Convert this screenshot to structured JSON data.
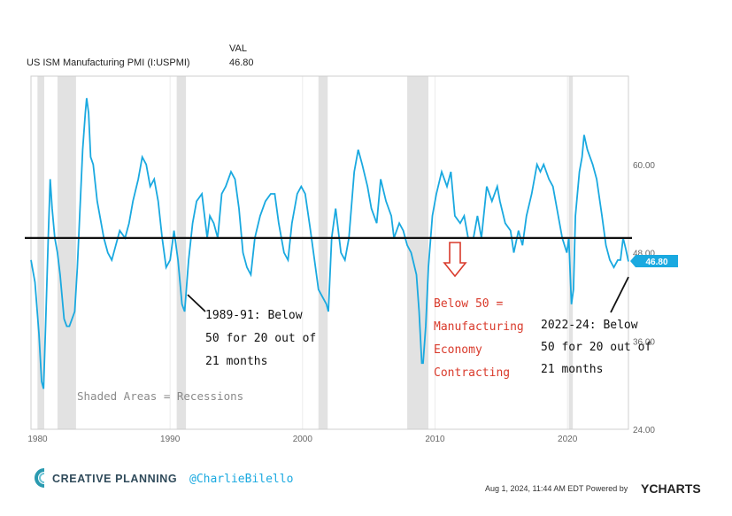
{
  "header": {
    "series_name": "US ISM Manufacturing PMI (I:USPMI)",
    "val_label": "VAL",
    "val_value": "46.80"
  },
  "chart_data": {
    "type": "line",
    "title": "US ISM Manufacturing PMI (I:USPMI)",
    "xlabel": "",
    "ylabel": "",
    "xlim": [
      1979.5,
      2024.6
    ],
    "ylim": [
      24,
      72
    ],
    "x_ticks": [
      "1980",
      "1990",
      "2000",
      "2010",
      "2020"
    ],
    "y_ticks": [
      "24.00",
      "36.00",
      "48.00",
      "60.00"
    ],
    "reference_line": 50,
    "last_value_label": "46.80",
    "recessions": [
      [
        1980.0,
        1980.5
      ],
      [
        1981.5,
        1982.9
      ],
      [
        1990.5,
        1991.2
      ],
      [
        2001.2,
        2001.9
      ],
      [
        2007.9,
        2009.5
      ],
      [
        2020.1,
        2020.4
      ]
    ],
    "series": [
      {
        "color": "#1aa9e0",
        "points": [
          [
            1979.5,
            47
          ],
          [
            1979.8,
            44
          ],
          [
            1980.1,
            37
          ],
          [
            1980.3,
            30.5
          ],
          [
            1980.45,
            29.5
          ],
          [
            1980.6,
            38
          ],
          [
            1980.8,
            50
          ],
          [
            1980.95,
            58
          ],
          [
            1981.1,
            54
          ],
          [
            1981.3,
            50
          ],
          [
            1981.5,
            48
          ],
          [
            1981.7,
            45
          ],
          [
            1981.9,
            41
          ],
          [
            1982.0,
            39
          ],
          [
            1982.2,
            38
          ],
          [
            1982.4,
            38
          ],
          [
            1982.6,
            39
          ],
          [
            1982.8,
            40
          ],
          [
            1983.0,
            46
          ],
          [
            1983.2,
            54
          ],
          [
            1983.4,
            62
          ],
          [
            1983.6,
            67
          ],
          [
            1983.7,
            69
          ],
          [
            1983.85,
            67
          ],
          [
            1984.0,
            61
          ],
          [
            1984.2,
            60
          ],
          [
            1984.5,
            55
          ],
          [
            1984.8,
            52
          ],
          [
            1985.0,
            50
          ],
          [
            1985.3,
            48
          ],
          [
            1985.6,
            47
          ],
          [
            1985.9,
            49
          ],
          [
            1986.2,
            51
          ],
          [
            1986.6,
            50
          ],
          [
            1986.9,
            52
          ],
          [
            1987.2,
            55
          ],
          [
            1987.6,
            58
          ],
          [
            1987.9,
            61
          ],
          [
            1988.2,
            60
          ],
          [
            1988.5,
            57
          ],
          [
            1988.8,
            58
          ],
          [
            1989.1,
            55
          ],
          [
            1989.4,
            50
          ],
          [
            1989.7,
            46
          ],
          [
            1990.0,
            47
          ],
          [
            1990.3,
            51
          ],
          [
            1990.6,
            47
          ],
          [
            1990.9,
            41
          ],
          [
            1991.1,
            40
          ],
          [
            1991.4,
            47
          ],
          [
            1991.7,
            52
          ],
          [
            1992.0,
            55
          ],
          [
            1992.4,
            56
          ],
          [
            1992.8,
            50
          ],
          [
            1993.0,
            53
          ],
          [
            1993.3,
            52
          ],
          [
            1993.6,
            50
          ],
          [
            1993.9,
            56
          ],
          [
            1994.2,
            57
          ],
          [
            1994.6,
            59
          ],
          [
            1994.9,
            58
          ],
          [
            1995.2,
            54
          ],
          [
            1995.5,
            48
          ],
          [
            1995.8,
            46
          ],
          [
            1996.1,
            45
          ],
          [
            1996.4,
            50
          ],
          [
            1996.8,
            53
          ],
          [
            1997.2,
            55
          ],
          [
            1997.6,
            56
          ],
          [
            1997.9,
            56
          ],
          [
            1998.2,
            52
          ],
          [
            1998.6,
            48
          ],
          [
            1998.9,
            47
          ],
          [
            1999.2,
            52
          ],
          [
            1999.6,
            56
          ],
          [
            1999.9,
            57
          ],
          [
            2000.2,
            56
          ],
          [
            2000.6,
            51
          ],
          [
            2000.9,
            47
          ],
          [
            2001.2,
            43
          ],
          [
            2001.5,
            42
          ],
          [
            2001.8,
            41
          ],
          [
            2001.95,
            40
          ],
          [
            2002.2,
            50
          ],
          [
            2002.5,
            54
          ],
          [
            2002.9,
            48
          ],
          [
            2003.2,
            47
          ],
          [
            2003.5,
            50
          ],
          [
            2003.9,
            59
          ],
          [
            2004.2,
            62
          ],
          [
            2004.5,
            60
          ],
          [
            2004.9,
            57
          ],
          [
            2005.2,
            54
          ],
          [
            2005.6,
            52
          ],
          [
            2005.9,
            58
          ],
          [
            2006.3,
            55
          ],
          [
            2006.7,
            53
          ],
          [
            2006.9,
            50
          ],
          [
            2007.3,
            52
          ],
          [
            2007.6,
            51
          ],
          [
            2007.9,
            49
          ],
          [
            2008.2,
            48
          ],
          [
            2008.6,
            45
          ],
          [
            2008.8,
            40
          ],
          [
            2009.0,
            33
          ],
          [
            2009.1,
            33
          ],
          [
            2009.3,
            38
          ],
          [
            2009.5,
            46
          ],
          [
            2009.8,
            53
          ],
          [
            2010.1,
            56
          ],
          [
            2010.5,
            59
          ],
          [
            2010.9,
            57
          ],
          [
            2011.2,
            59
          ],
          [
            2011.5,
            53
          ],
          [
            2011.9,
            52
          ],
          [
            2012.2,
            53
          ],
          [
            2012.5,
            50
          ],
          [
            2012.9,
            50
          ],
          [
            2013.2,
            53
          ],
          [
            2013.5,
            50
          ],
          [
            2013.9,
            57
          ],
          [
            2014.3,
            55
          ],
          [
            2014.7,
            57
          ],
          [
            2014.9,
            55
          ],
          [
            2015.3,
            52
          ],
          [
            2015.7,
            51
          ],
          [
            2015.95,
            48
          ],
          [
            2016.3,
            51
          ],
          [
            2016.6,
            49
          ],
          [
            2016.9,
            53
          ],
          [
            2017.3,
            56
          ],
          [
            2017.7,
            60
          ],
          [
            2017.95,
            59
          ],
          [
            2018.2,
            60
          ],
          [
            2018.6,
            58
          ],
          [
            2018.9,
            57
          ],
          [
            2019.2,
            54
          ],
          [
            2019.6,
            50
          ],
          [
            2019.95,
            48
          ],
          [
            2020.1,
            50
          ],
          [
            2020.3,
            41
          ],
          [
            2020.45,
            43
          ],
          [
            2020.6,
            53
          ],
          [
            2020.9,
            59
          ],
          [
            2021.1,
            61
          ],
          [
            2021.25,
            64
          ],
          [
            2021.5,
            62
          ],
          [
            2021.9,
            60
          ],
          [
            2022.2,
            58
          ],
          [
            2022.6,
            53
          ],
          [
            2022.9,
            49
          ],
          [
            2023.2,
            47
          ],
          [
            2023.5,
            46
          ],
          [
            2023.8,
            47
          ],
          [
            2024.0,
            47
          ],
          [
            2024.2,
            50
          ],
          [
            2024.4,
            48.5
          ],
          [
            2024.6,
            46.8
          ]
        ]
      }
    ]
  },
  "annotations": {
    "left_lines": [
      "1989-91: Below",
      "50 for 20 out of",
      "21 months"
    ],
    "middle_lines": [
      "Below 50 =",
      "Manufacturing",
      "Economy",
      "Contracting"
    ],
    "right_lines": [
      "2022-24: Below",
      "50 for 20 out of",
      "21 months"
    ],
    "shaded_note": "Shaded Areas = Recessions"
  },
  "footer": {
    "brand": "CREATIVE PLANNING",
    "handle": "@CharlieBilello",
    "timestamp": "Aug 1, 2024, 11:44 AM EDT Powered by",
    "ycharts": "YCHARTS"
  },
  "colors": {
    "line": "#1aa9e0",
    "annotation_red": "#e53935",
    "recession_shade": "#e2e2e2",
    "brand_teal": "#2a9ab0"
  }
}
